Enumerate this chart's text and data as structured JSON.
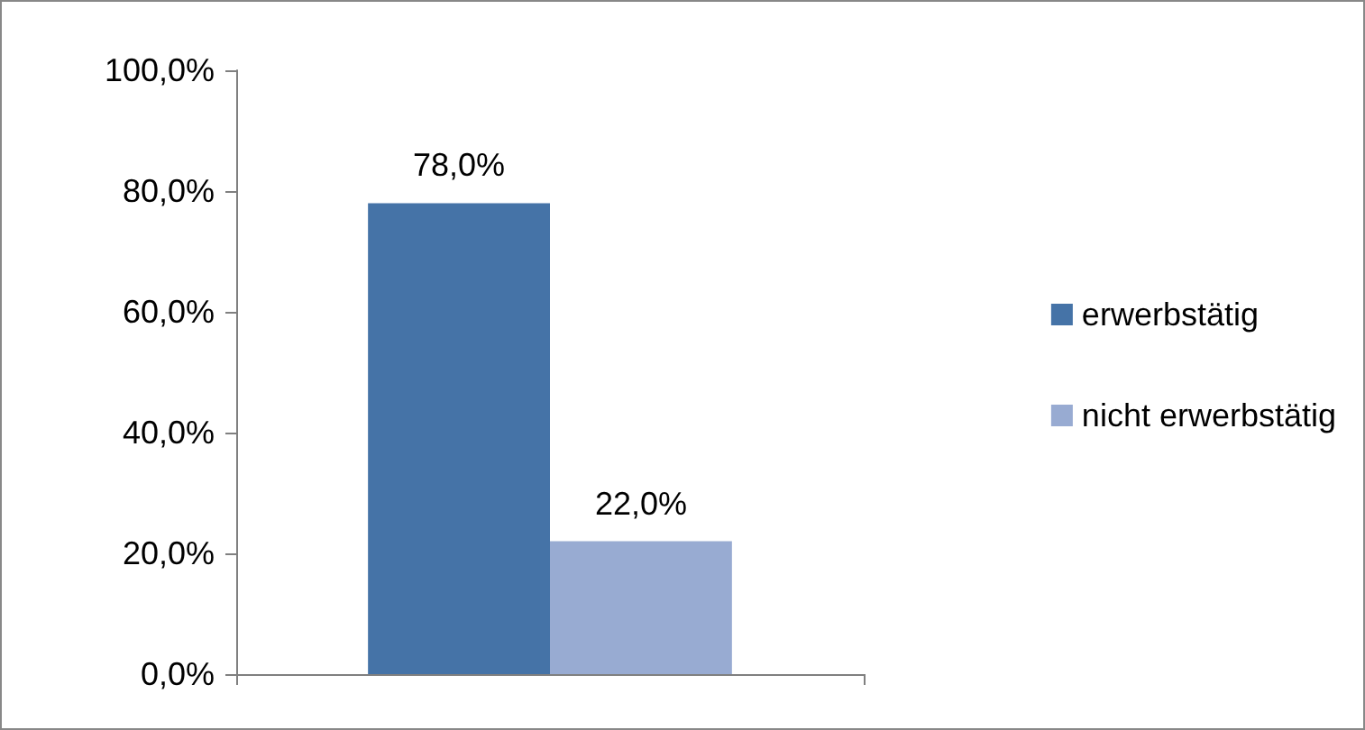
{
  "chart_data": {
    "type": "bar",
    "categories": [
      null
    ],
    "series": [
      {
        "name": "erwerbstätig",
        "color": "#4573a7",
        "values": [
          78.0
        ],
        "value_labels": [
          "78,0%"
        ]
      },
      {
        "name": "nicht erwerbstätig",
        "color": "#98abd2",
        "values": [
          22.0
        ],
        "value_labels": [
          "22,0%"
        ]
      }
    ],
    "ylim": [
      0,
      100
    ],
    "yticks": [
      {
        "value": 0,
        "label": "0,0%"
      },
      {
        "value": 20,
        "label": "20,0%"
      },
      {
        "value": 40,
        "label": "40,0%"
      },
      {
        "value": 60,
        "label": "60,0%"
      },
      {
        "value": 80,
        "label": "80,0%"
      },
      {
        "value": 100,
        "label": "100,0%"
      }
    ],
    "grid": false,
    "legend": "right"
  }
}
